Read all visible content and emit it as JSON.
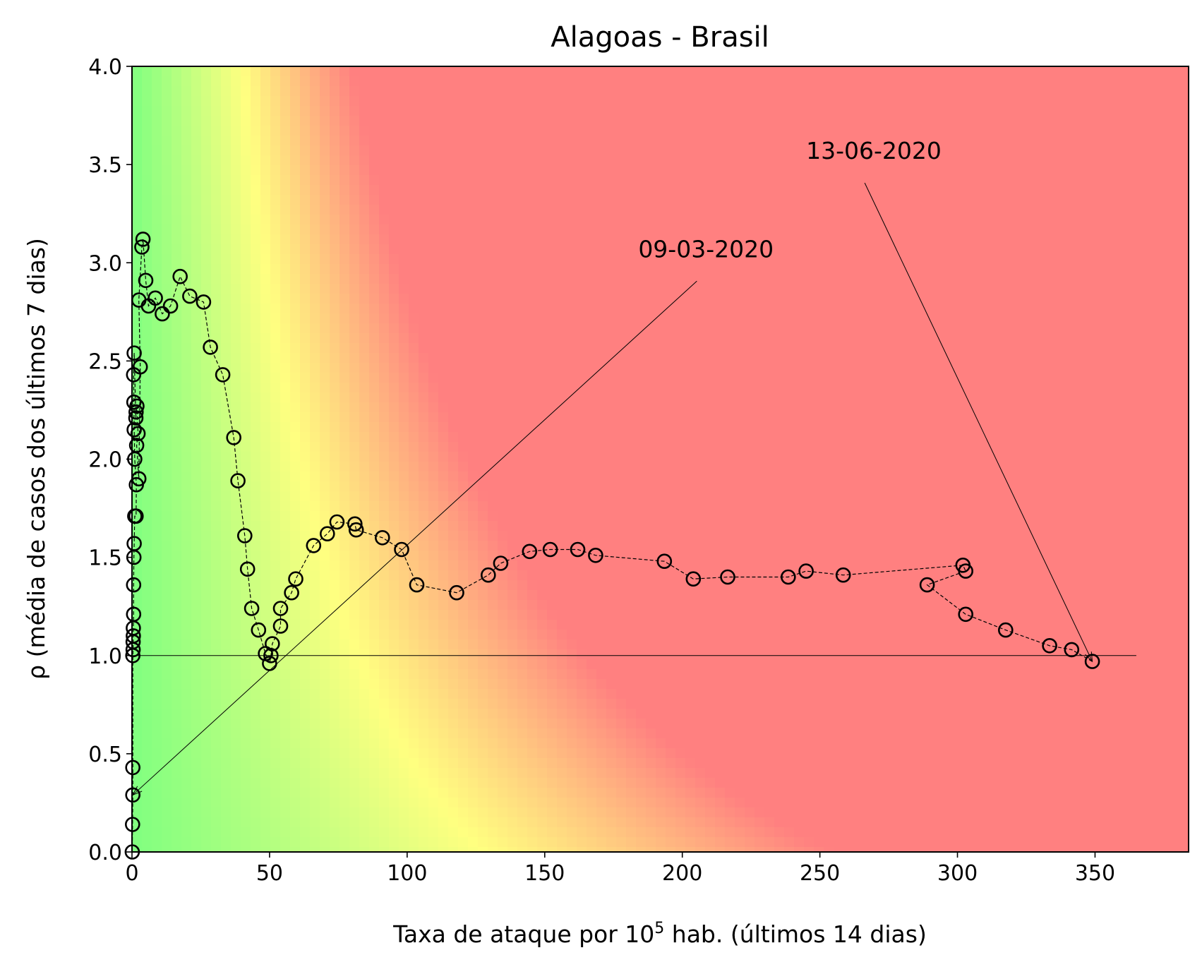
{
  "chart_data": {
    "type": "scatter",
    "title": "Alagoas - Brasil",
    "xlabel": {
      "pre": "Taxa de ataque por 10",
      "sup": "5",
      "post": " hab. (últimos 14 dias)"
    },
    "ylabel": "ρ (média de casos dos últimos 7 dias)",
    "xlim": [
      0,
      384
    ],
    "ylim": [
      0,
      4
    ],
    "xticks": [
      "0",
      "50",
      "100",
      "150",
      "200",
      "250",
      "300",
      "350"
    ],
    "yticks": [
      "0.0",
      "0.5",
      "1.0",
      "1.5",
      "2.0",
      "2.5",
      "3.0",
      "3.5",
      "4.0"
    ],
    "reference_line": {
      "y": 1.0,
      "x_start": 0,
      "x_end": 365
    },
    "background": "risk gradient: green (low rate, low ρ) → yellow → red (high rate / high ρ)",
    "colors": {
      "green": "#80ff80",
      "yellow": "#ffff80",
      "red": "#ff8080",
      "marker": "#000000"
    },
    "series": [
      {
        "line_style": "dashed",
        "marker": "open-circle",
        "points": [
          [
            0.1,
            0.0
          ],
          [
            0.2,
            0.14
          ],
          [
            0.3,
            0.29
          ],
          [
            0.3,
            0.43
          ],
          [
            0.3,
            1.0
          ],
          [
            0.4,
            1.03
          ],
          [
            0.4,
            1.07
          ],
          [
            0.5,
            1.1
          ],
          [
            0.5,
            1.14
          ],
          [
            0.6,
            1.21
          ],
          [
            0.6,
            1.36
          ],
          [
            0.7,
            1.5
          ],
          [
            0.8,
            1.57
          ],
          [
            1.0,
            1.71
          ],
          [
            1.3,
            1.71
          ],
          [
            1.5,
            1.71
          ],
          [
            1.6,
            1.87
          ],
          [
            1.0,
            2.0
          ],
          [
            0.8,
            2.15
          ],
          [
            0.7,
            2.29
          ],
          [
            0.6,
            2.43
          ],
          [
            0.8,
            2.54
          ],
          [
            1.4,
            2.21
          ],
          [
            1.5,
            2.24
          ],
          [
            1.8,
            2.27
          ],
          [
            2.2,
            2.13
          ],
          [
            1.7,
            2.07
          ],
          [
            2.5,
            1.9
          ],
          [
            3.0,
            2.47
          ],
          [
            2.5,
            2.81
          ],
          [
            3.6,
            3.08
          ],
          [
            4.0,
            3.12
          ],
          [
            5.0,
            2.91
          ],
          [
            6.0,
            2.78
          ],
          [
            8.5,
            2.82
          ],
          [
            11.0,
            2.74
          ],
          [
            14.0,
            2.78
          ],
          [
            17.5,
            2.93
          ],
          [
            21.0,
            2.83
          ],
          [
            26.0,
            2.8
          ],
          [
            28.5,
            2.57
          ],
          [
            33.0,
            2.43
          ],
          [
            37.0,
            2.11
          ],
          [
            38.5,
            1.89
          ],
          [
            41.0,
            1.61
          ],
          [
            42.0,
            1.44
          ],
          [
            43.5,
            1.24
          ],
          [
            46.0,
            1.13
          ],
          [
            48.5,
            1.01
          ],
          [
            50.0,
            0.96
          ],
          [
            50.5,
            1.0
          ],
          [
            51.0,
            1.06
          ],
          [
            54.0,
            1.15
          ],
          [
            54.0,
            1.24
          ],
          [
            58.0,
            1.32
          ],
          [
            59.5,
            1.39
          ],
          [
            66.0,
            1.56
          ],
          [
            71.0,
            1.62
          ],
          [
            74.5,
            1.68
          ],
          [
            81.0,
            1.67
          ],
          [
            81.5,
            1.64
          ],
          [
            91.0,
            1.6
          ],
          [
            98.0,
            1.54
          ],
          [
            103.5,
            1.36
          ],
          [
            118.0,
            1.32
          ],
          [
            129.5,
            1.41
          ],
          [
            134.0,
            1.47
          ],
          [
            144.5,
            1.53
          ],
          [
            152.0,
            1.54
          ],
          [
            162.0,
            1.54
          ],
          [
            168.5,
            1.51
          ],
          [
            193.5,
            1.48
          ],
          [
            204.0,
            1.39
          ],
          [
            216.5,
            1.4
          ],
          [
            238.5,
            1.4
          ],
          [
            245.0,
            1.43
          ],
          [
            258.5,
            1.41
          ],
          [
            302.0,
            1.46
          ],
          [
            303.0,
            1.43
          ],
          [
            289.0,
            1.36
          ],
          [
            303.0,
            1.21
          ],
          [
            317.5,
            1.13
          ],
          [
            333.5,
            1.05
          ],
          [
            341.5,
            1.03
          ],
          [
            349.0,
            0.97
          ]
        ]
      }
    ],
    "annotations": [
      {
        "text": "09-03-2020",
        "point": [
          0.3,
          0.29
        ],
        "text_pos": [
          184,
          3.0
        ]
      },
      {
        "text": "13-06-2020",
        "point": [
          349.0,
          0.97
        ],
        "text_pos": [
          245,
          3.5
        ]
      }
    ]
  }
}
